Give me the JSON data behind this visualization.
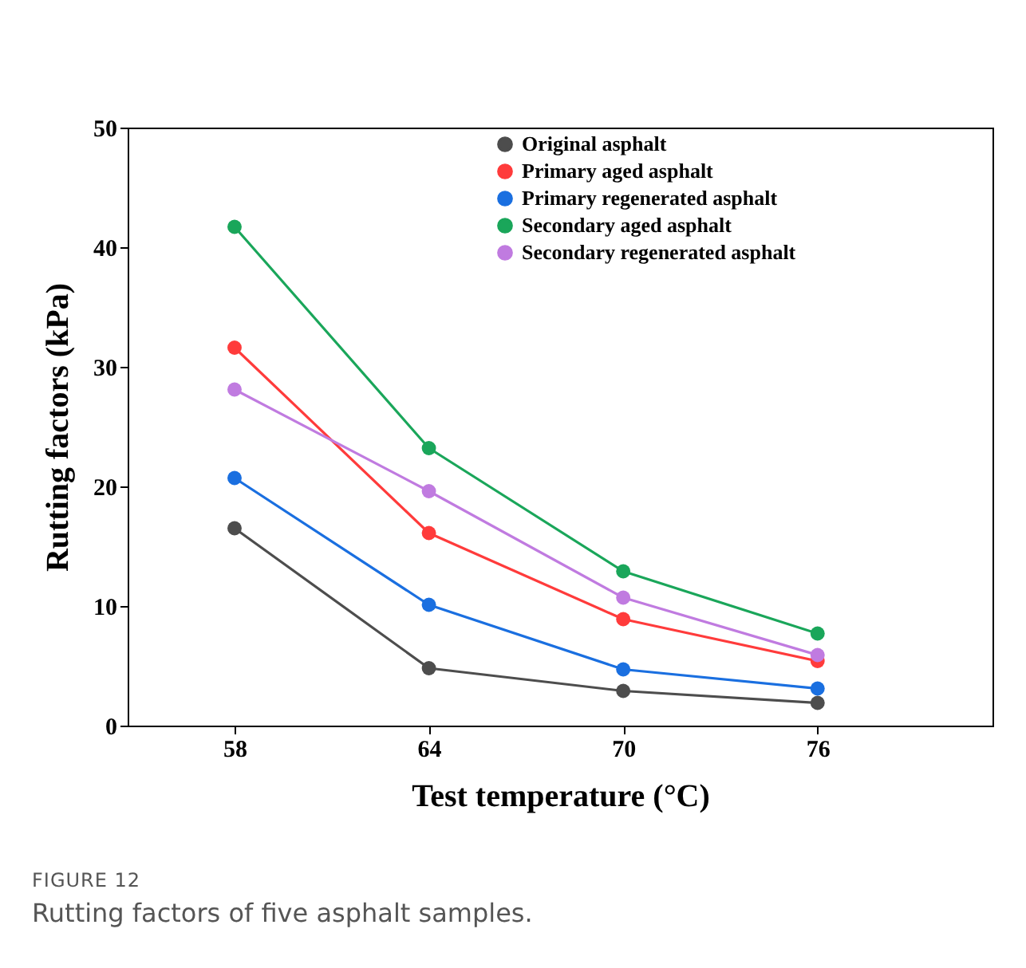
{
  "chart_data": {
    "type": "line",
    "xlabel": "Test temperature (°C)",
    "ylabel": "Rutting factors (kPa)",
    "x": [
      58,
      64,
      70,
      76
    ],
    "xlim": [
      54.7,
      81.4
    ],
    "xticks": [
      58,
      64,
      70,
      76
    ],
    "ylim": [
      0,
      50
    ],
    "yticks": [
      0,
      10,
      20,
      30,
      40,
      50
    ],
    "grid": false,
    "legend": "top right",
    "marker": "circle",
    "line_style": "solid",
    "series": [
      {
        "name": "Original asphalt",
        "color": "#4d4d4d",
        "values": [
          16.5,
          4.8,
          2.9,
          1.9
        ]
      },
      {
        "name": "Primary aged asphalt",
        "color": "#ff3b3b",
        "values": [
          31.6,
          16.1,
          8.9,
          5.4
        ]
      },
      {
        "name": "Primary regenerated asphalt",
        "color": "#1a6fe0",
        "values": [
          20.7,
          10.1,
          4.7,
          3.1
        ]
      },
      {
        "name": "Secondary aged asphalt",
        "color": "#1aa65a",
        "values": [
          41.7,
          23.2,
          12.9,
          7.7
        ]
      },
      {
        "name": "Secondary regenerated asphalt",
        "color": "#c07be0",
        "values": [
          28.1,
          19.6,
          10.7,
          5.9
        ]
      }
    ],
    "annotations": [
      "FIGURE 12",
      "Rutting factors of five asphalt samples."
    ]
  }
}
